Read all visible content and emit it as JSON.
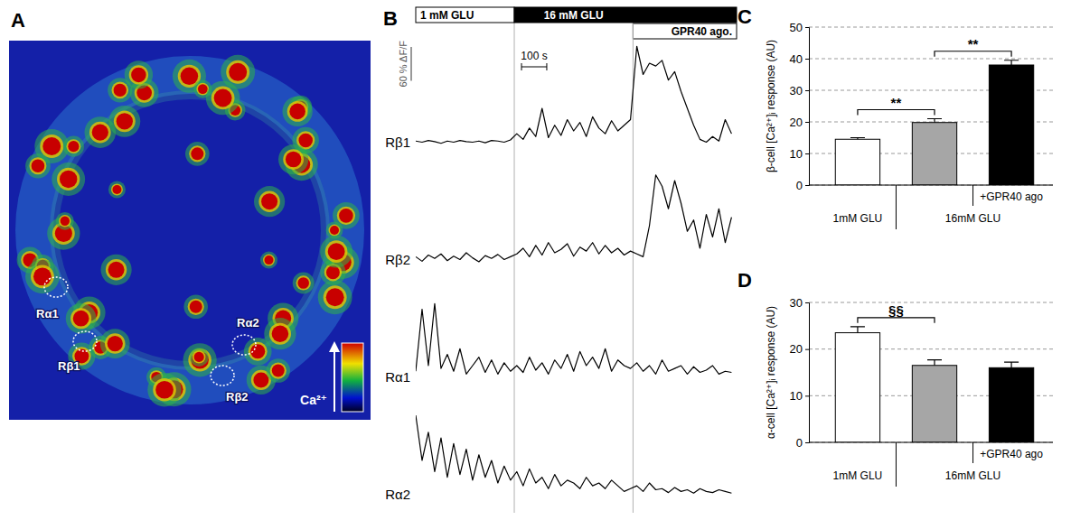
{
  "chart_data": [
    {
      "panel": "A",
      "type": "image",
      "rois": [
        "Rα1",
        "Rβ1",
        "Rα2",
        "Rβ2"
      ],
      "colorbar_label": "Ca²⁺"
    },
    {
      "panel": "B",
      "type": "line",
      "tick_labels": false,
      "x": [
        0,
        25,
        50,
        75,
        100,
        125,
        150,
        175,
        200,
        225,
        250,
        275,
        300,
        325,
        350,
        375,
        400,
        425,
        450,
        475,
        500,
        525,
        550,
        575,
        600,
        625,
        650,
        675,
        700,
        725,
        750,
        775,
        800,
        825,
        850,
        875,
        900,
        925,
        950,
        975,
        1000,
        1025,
        1050,
        1075,
        1100,
        1125,
        1150,
        1175,
        1200,
        1225,
        1250
      ],
      "xlim": [
        0,
        1270
      ],
      "ylim": [
        -20,
        180
      ],
      "stimuli": [
        {
          "label": "1 mM GLU",
          "start": 0,
          "end": 390
        },
        {
          "label": "16 mM GLU",
          "start": 390,
          "end": 1270
        },
        {
          "label": "GPR40 ago.",
          "start": 860,
          "end": 1270
        }
      ],
      "scale_bars": [
        {
          "label": "100 s",
          "value": 100,
          "axis": "x"
        },
        {
          "label": "60 % ΔF/F",
          "value": 60,
          "axis": "y"
        }
      ],
      "series": [
        {
          "name": "Rβ1",
          "color": "#000000",
          "values": [
            2,
            0,
            3,
            1,
            -2,
            2,
            0,
            3,
            1,
            0,
            2,
            -1,
            3,
            2,
            0,
            4,
            15,
            5,
            25,
            10,
            60,
            8,
            30,
            12,
            40,
            20,
            35,
            10,
            45,
            25,
            15,
            38,
            20,
            30,
            40,
            170,
            120,
            140,
            135,
            145,
            110,
            125,
            90,
            60,
            30,
            5,
            0,
            10,
            2,
            40,
            15
          ]
        },
        {
          "name": "Rβ2",
          "color": "#000000",
          "values": [
            5,
            -3,
            8,
            2,
            10,
            -2,
            6,
            0,
            12,
            3,
            -4,
            7,
            2,
            9,
            0,
            5,
            10,
            20,
            5,
            25,
            8,
            30,
            12,
            18,
            28,
            6,
            22,
            15,
            30,
            10,
            25,
            12,
            20,
            8,
            15,
            10,
            5,
            60,
            150,
            130,
            90,
            140,
            100,
            50,
            70,
            20,
            80,
            40,
            90,
            30,
            75
          ]
        },
        {
          "name": "Rα1",
          "color": "#000000",
          "values": [
            10,
            120,
            20,
            130,
            15,
            40,
            10,
            50,
            5,
            20,
            35,
            8,
            30,
            5,
            25,
            10,
            20,
            8,
            35,
            12,
            25,
            5,
            30,
            15,
            40,
            10,
            45,
            20,
            35,
            15,
            50,
            10,
            30,
            20,
            15,
            25,
            10,
            20,
            5,
            30,
            10,
            15,
            20,
            5,
            18,
            8,
            12,
            20,
            5,
            10,
            8
          ]
        },
        {
          "name": "Rα2",
          "color": "#000000",
          "values": [
            140,
            60,
            110,
            40,
            100,
            30,
            90,
            35,
            80,
            25,
            70,
            30,
            60,
            20,
            50,
            25,
            40,
            15,
            45,
            20,
            30,
            10,
            35,
            15,
            25,
            20,
            10,
            30,
            15,
            20,
            10,
            25,
            15,
            5,
            10,
            15,
            5,
            20,
            8,
            10,
            3,
            12,
            5,
            8,
            2,
            10,
            5,
            3,
            8,
            5,
            2
          ]
        }
      ]
    },
    {
      "panel": "C",
      "type": "bar",
      "y_label": "β-cell [Ca²⁺]ᵢ response (AU)",
      "categories": [
        "1mM GLU",
        null,
        "+GPR40 ago"
      ],
      "group_labels": [
        {
          "label": "16mM GLU",
          "from": 1,
          "to": 2
        }
      ],
      "values": [
        14.5,
        19.8,
        38
      ],
      "errors": [
        0.5,
        1.2,
        1.5
      ],
      "colors": [
        "#ffffff",
        "#a6a6a6",
        "#000000"
      ],
      "ylim": [
        0,
        50
      ],
      "yticks": [
        0,
        10,
        20,
        30,
        40,
        50
      ],
      "grid": true,
      "significance": [
        {
          "from": 0,
          "to": 1,
          "label": "**"
        },
        {
          "from": 1,
          "to": 2,
          "label": "**"
        }
      ]
    },
    {
      "panel": "D",
      "type": "bar",
      "y_label": "α-cell [Ca²⁺]ᵢ response (AU)",
      "categories": [
        "1mM GLU",
        null,
        "+GPR40 ago"
      ],
      "group_labels": [
        {
          "label": "16mM GLU",
          "from": 1,
          "to": 2
        }
      ],
      "values": [
        23.5,
        16.5,
        16
      ],
      "errors": [
        1.3,
        1.2,
        1.2
      ],
      "colors": [
        "#ffffff",
        "#a6a6a6",
        "#000000"
      ],
      "ylim": [
        0,
        30
      ],
      "yticks": [
        0,
        10,
        20,
        30
      ],
      "grid": true,
      "significance": [
        {
          "from": 0,
          "to": 1,
          "label": "§§"
        }
      ]
    }
  ]
}
